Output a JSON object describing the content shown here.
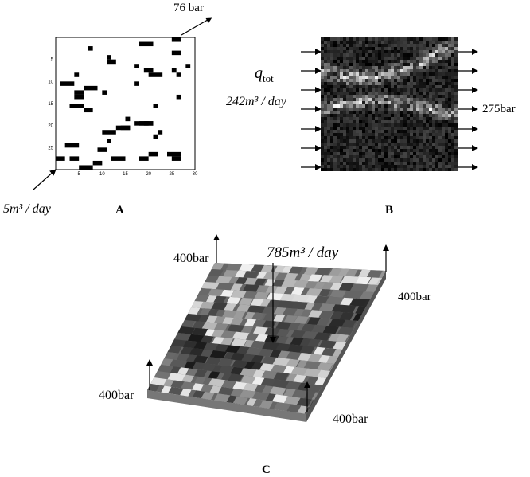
{
  "panel_a": {
    "label": "A",
    "outlet": "76 bar",
    "inlet": "5m³ / day",
    "x_ticks": [
      "5",
      "10",
      "15",
      "20",
      "25",
      "30"
    ],
    "y_ticks": [
      "5",
      "10",
      "15",
      "20",
      "25"
    ]
  },
  "panel_b": {
    "label": "B",
    "flow_symbol": "q",
    "flow_subscript": "tot",
    "flow_rate": "242m³ / day",
    "outlet": "275bar"
  },
  "panel_c": {
    "label": "C",
    "well_rate": "785m³ / day",
    "corner_pressures": [
      "400bar",
      "400bar",
      "400bar",
      "400bar"
    ]
  }
}
